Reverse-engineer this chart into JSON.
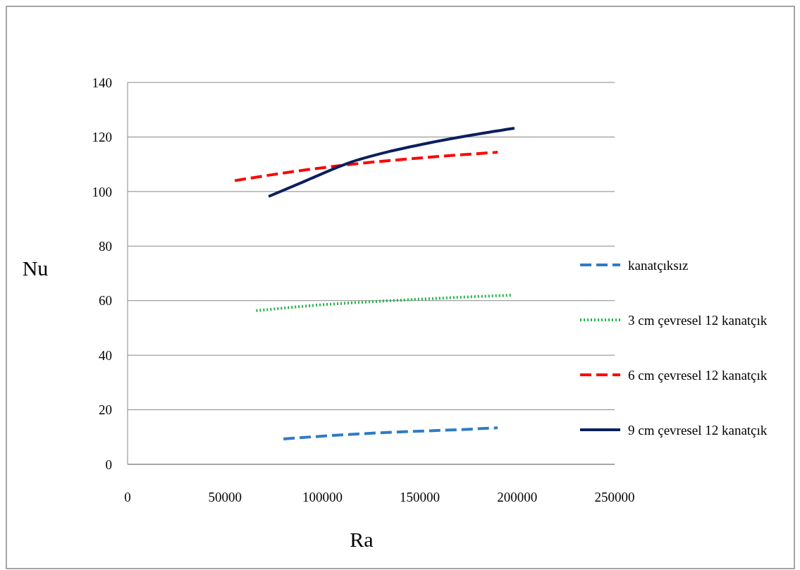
{
  "chart_data": {
    "type": "line",
    "xlabel": "Ra",
    "ylabel": "Nu",
    "xlim": [
      0,
      250000
    ],
    "xticks": [
      0,
      50000,
      100000,
      150000,
      200000,
      250000
    ],
    "ylim": [
      0,
      140
    ],
    "yticks": [
      0,
      20,
      40,
      60,
      80,
      100,
      120,
      140
    ],
    "grid": "y",
    "legend": "right",
    "series": [
      {
        "name": "kanatçıksız",
        "color": "#2e7bc6",
        "line_style": "dashed",
        "x": [
          80000,
          110000,
          140000,
          170000,
          190000
        ],
        "values": [
          9.3,
          10.8,
          11.9,
          12.7,
          13.4
        ]
      },
      {
        "name": "3 cm çevresel 12 kanatçık",
        "color": "#22b34c",
        "line_style": "dotted",
        "x": [
          66000,
          100000,
          130000,
          160000,
          197000
        ],
        "values": [
          56.3,
          58.5,
          59.8,
          60.9,
          62
        ]
      },
      {
        "name": "6 cm çevresel 12 kanatçık",
        "color": "#ff0000",
        "line_style": "dashed",
        "x": [
          55000,
          85000,
          115000,
          150000,
          190000
        ],
        "values": [
          104,
          107.3,
          110,
          112.3,
          114.4
        ]
      },
      {
        "name": "9 cm çevresel 12 kanatçık",
        "color": "#0b1f5e",
        "line_style": "solid",
        "x": [
          72400,
          90000,
          114700,
          135000,
          154500,
          175000,
          198600
        ],
        "values": [
          98.2,
          103.5,
          110.8,
          114.8,
          117.8,
          120.5,
          123.2
        ]
      }
    ]
  }
}
